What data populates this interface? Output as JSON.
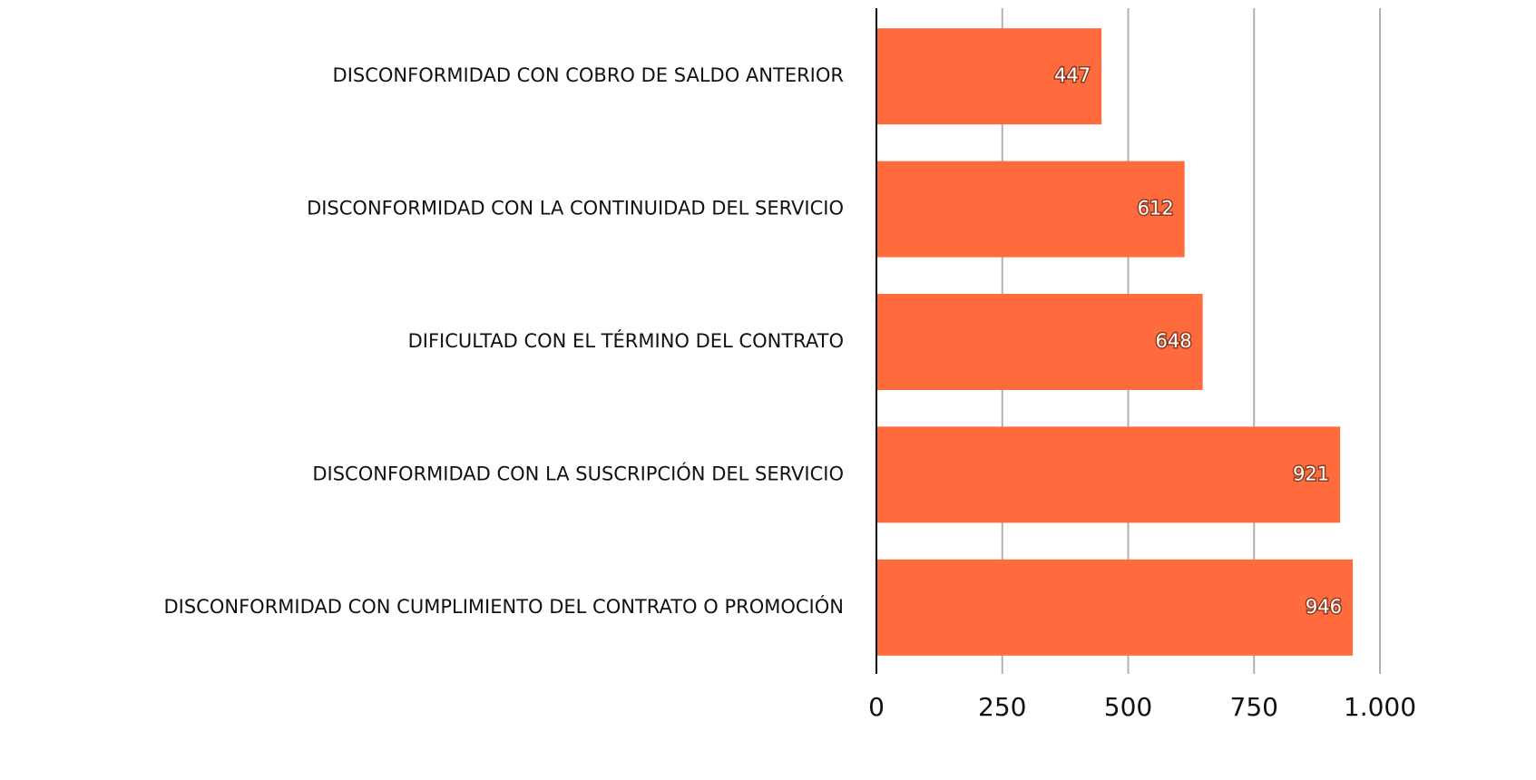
{
  "chart_data": {
    "type": "bar",
    "orientation": "horizontal",
    "categories": [
      "DISCONFORMIDAD CON COBRO DE SALDO ANTERIOR",
      "DISCONFORMIDAD CON LA CONTINUIDAD DEL SERVICIO",
      "DIFICULTAD CON EL TÉRMINO DEL CONTRATO",
      "DISCONFORMIDAD CON LA SUSCRIPCIÓN DEL SERVICIO",
      "DISCONFORMIDAD CON CUMPLIMIENTO DEL CONTRATO O PROMOCIÓN"
    ],
    "values": [
      447,
      612,
      648,
      921,
      946
    ],
    "color": "#ff6b3d",
    "xlim": [
      0,
      1000
    ],
    "xticks": [
      0,
      250,
      500,
      750,
      {
        "value": 1000,
        "label": "1.000"
      }
    ],
    "grid": true
  }
}
